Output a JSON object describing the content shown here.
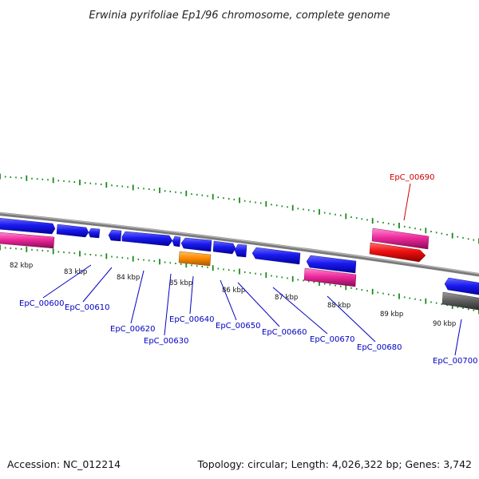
{
  "title": "Erwinia pyrifoliae Ep1/96 chromosome, complete genome",
  "footer": {
    "accession": "Accession: NC_012214",
    "summary": "Topology: circular; Length: 4,026,322 bp; Genes: 3,742"
  },
  "colors": {
    "backbone": "#808080",
    "cds_blue": "#1010e0",
    "pink": "#e8289a",
    "red": "#ee1010",
    "orange": "#ff8c00",
    "gray": "#606060",
    "ticks": "#1a8a1a",
    "label_blue": "#0000c0",
    "label_red": "#d00000"
  },
  "kbp_labels": [
    "82 kbp",
    "83 kbp",
    "84 kbp",
    "85 kbp",
    "86 kbp",
    "87 kbp",
    "88 kbp",
    "89 kbp",
    "90 kbp"
  ],
  "gene_labels": [
    {
      "text": "EpC_00600",
      "color": "blue"
    },
    {
      "text": "EpC_00610",
      "color": "blue"
    },
    {
      "text": "EpC_00620",
      "color": "blue"
    },
    {
      "text": "EpC_00630",
      "color": "blue"
    },
    {
      "text": "EpC_00640",
      "color": "blue"
    },
    {
      "text": "EpC_00650",
      "color": "blue"
    },
    {
      "text": "EpC_00660",
      "color": "blue"
    },
    {
      "text": "EpC_00670",
      "color": "blue"
    },
    {
      "text": "EpC_00680",
      "color": "blue"
    },
    {
      "text": "EpC_00690",
      "color": "red"
    },
    {
      "text": "EpC_00700",
      "color": "blue"
    }
  ]
}
